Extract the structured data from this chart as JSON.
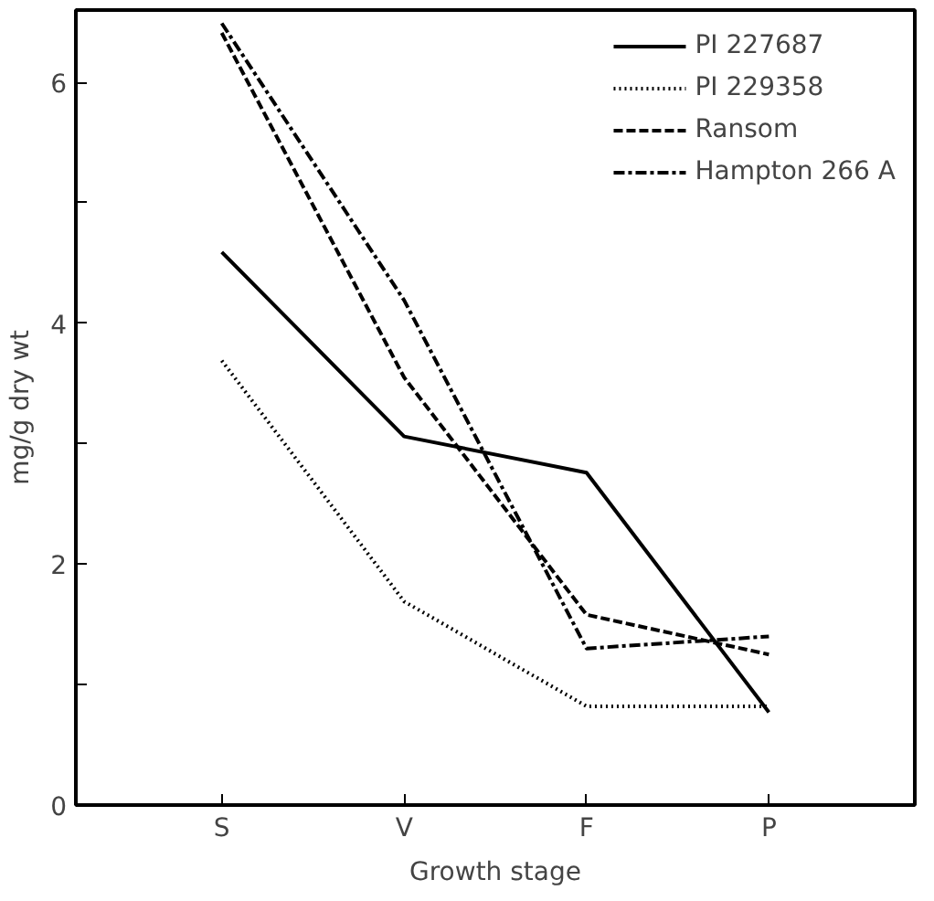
{
  "chart_data": {
    "type": "line",
    "xlabel": "Growth stage",
    "ylabel": "mg/g dry wt",
    "categories": [
      "S",
      "V",
      "F",
      "P"
    ],
    "ylim": [
      0,
      6.6
    ],
    "yticks": [
      0,
      {
        "value": 1,
        "label": null
      },
      2,
      {
        "value": 3,
        "label": null
      },
      4,
      {
        "value": 5,
        "label": null
      },
      6
    ],
    "grid": false,
    "legend": "top right",
    "marker": "none",
    "series": [
      {
        "name": "PI 227687",
        "color": "#000000",
        "line_style": "solid",
        "values": [
          4.59,
          3.06,
          2.76,
          0.77
        ]
      },
      {
        "name": "PI 229358",
        "color": "#000000",
        "line_style": "dotted",
        "values": [
          3.69,
          1.69,
          0.82,
          0.82
        ]
      },
      {
        "name": "Ransom",
        "color": "#000000",
        "line_style": "dashed",
        "values": [
          6.41,
          3.55,
          1.58,
          1.25
        ]
      },
      {
        "name": "Hampton 266 A",
        "color": "#000000",
        "line_style": "dashdot",
        "values": [
          6.49,
          4.19,
          1.3,
          1.4
        ]
      }
    ]
  }
}
